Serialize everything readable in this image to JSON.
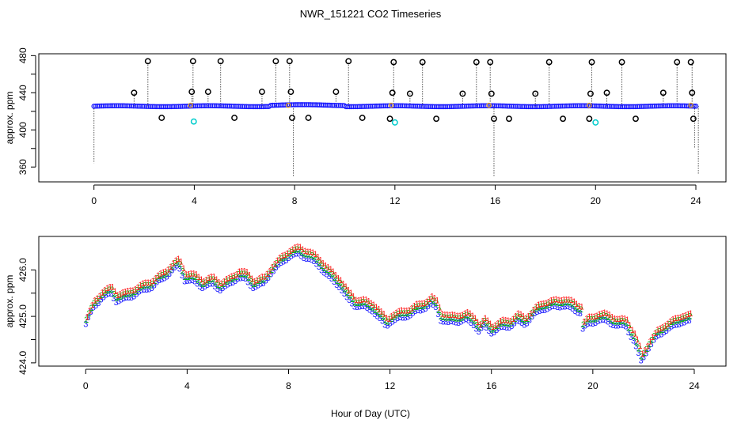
{
  "chart_data": [
    {
      "type": "scatter",
      "title": "NWR_151221  CO2 Timeseries",
      "xlabel": "",
      "ylabel": "approx. ppm",
      "xlim": [
        -2.2,
        25.2
      ],
      "ylim": [
        344,
        482
      ],
      "x_ticks": [
        0,
        4,
        8,
        12,
        16,
        20,
        24
      ],
      "y_ticks": [
        360,
        400,
        440,
        480
      ],
      "y_tick_labels": [
        "360",
        "400",
        "440",
        "480"
      ],
      "baseline": 425.5,
      "colors": {
        "baseline": "#1a1aff",
        "spike": "#000000",
        "low": "#00cccc",
        "mid": "#e0a020"
      },
      "series": [
        {
          "marker": "o",
          "color": "#000000",
          "x": [
            1.6,
            2.15,
            2.7,
            3.9,
            3.95,
            4.55,
            5.05,
            5.6,
            6.7,
            7.25,
            7.8,
            7.85,
            7.9,
            8.55,
            9.65,
            10.15,
            10.7,
            11.8,
            11.9,
            11.95,
            12.6,
            13.1,
            13.65,
            14.7,
            15.25,
            15.8,
            15.85,
            15.95,
            16.55,
            17.6,
            18.15,
            18.7,
            19.75,
            19.8,
            19.85,
            20.45,
            21.05,
            21.6,
            22.7,
            23.25,
            23.8,
            23.85,
            23.9
          ],
          "y": [
            440,
            474,
            413,
            441,
            474,
            441,
            474,
            413,
            441,
            474,
            474,
            441,
            413,
            413,
            441,
            474,
            413,
            412,
            440,
            473,
            439,
            473,
            412,
            439,
            473,
            473,
            439,
            412,
            412,
            439,
            473,
            412,
            412,
            439,
            473,
            440,
            473,
            412,
            440,
            473,
            473,
            440,
            412
          ]
        },
        {
          "marker": "o",
          "color": "#00cccc",
          "x": [
            3.98,
            12.0,
            20.0
          ],
          "y": [
            409,
            408,
            408
          ]
        }
      ],
      "spikes": {
        "x": [
          0.0,
          1.6,
          2.15,
          3.9,
          3.95,
          4.55,
          5.05,
          6.7,
          7.25,
          7.8,
          7.95,
          9.65,
          10.15,
          11.95,
          12.6,
          13.1,
          14.7,
          15.25,
          15.8,
          15.95,
          17.6,
          18.15,
          19.85,
          20.45,
          21.05,
          22.7,
          23.25,
          23.85,
          23.95,
          24.1
        ],
        "y": [
          364,
          440,
          474,
          441,
          474,
          441,
          474,
          441,
          474,
          474,
          350,
          441,
          474,
          473,
          439,
          473,
          439,
          473,
          473,
          350,
          439,
          473,
          473,
          440,
          473,
          440,
          473,
          473,
          380,
          352
        ]
      }
    },
    {
      "type": "scatter",
      "title": "",
      "xlabel": "Hour of Day (UTC)",
      "ylabel": "approx. ppm",
      "xlim": [
        -1.85,
        25.25
      ],
      "ylim": [
        423.93,
        426.72
      ],
      "x_ticks": [
        0,
        4,
        8,
        12,
        16,
        20,
        24
      ],
      "y_ticks": [
        424.0,
        425.0,
        426.0
      ],
      "y_tick_labels": [
        "424.0",
        "425.0",
        "426.0"
      ],
      "colors": {
        "marker3": "#1a1aff",
        "marker2": "#00bb00",
        "marker1": "#ff2020"
      },
      "profile": {
        "x": [
          0.0,
          0.3,
          0.6,
          1.0,
          1.2,
          1.5,
          2.0,
          2.6,
          3.0,
          3.4,
          3.65,
          3.9,
          4.3,
          4.6,
          5.0,
          5.3,
          5.6,
          6.0,
          6.3,
          6.6,
          7.0,
          7.3,
          7.6,
          8.0,
          8.4,
          8.8,
          9.2,
          9.6,
          10.0,
          10.3,
          10.6,
          11.0,
          11.3,
          11.6,
          11.85,
          12.0,
          12.4,
          12.8,
          13.2,
          13.6,
          13.8,
          14.0,
          14.3,
          14.6,
          15.0,
          15.3,
          15.5,
          15.7,
          16.0,
          16.3,
          16.7,
          17.0,
          17.3,
          17.7,
          18.0,
          18.4,
          18.8,
          19.2,
          19.5,
          19.6,
          19.8,
          20.2,
          20.6,
          21.0,
          21.3,
          21.6,
          21.9,
          22.2,
          22.5,
          22.8,
          23.2,
          23.5,
          23.8
        ],
        "y": [
          424.9,
          425.25,
          425.45,
          425.55,
          425.4,
          425.42,
          425.55,
          425.7,
          425.85,
          426.05,
          426.15,
          425.85,
          425.8,
          425.7,
          425.75,
          425.65,
          425.72,
          425.9,
          425.85,
          425.7,
          425.75,
          426.0,
          426.15,
          426.35,
          426.4,
          426.3,
          426.15,
          425.9,
          425.72,
          425.45,
          425.3,
          425.25,
          425.2,
          425.0,
          424.85,
          424.95,
          425.02,
          425.1,
          425.2,
          425.32,
          425.25,
          425.0,
          424.92,
          424.95,
          424.98,
          424.9,
          424.75,
          424.85,
          424.72,
          424.8,
          424.85,
          424.95,
          424.9,
          425.1,
          425.22,
          425.25,
          425.3,
          425.22,
          425.15,
          424.8,
          424.88,
          424.98,
          424.95,
          424.85,
          424.85,
          424.55,
          424.1,
          424.4,
          424.6,
          424.75,
          424.85,
          424.95,
          424.95
        ]
      }
    }
  ]
}
